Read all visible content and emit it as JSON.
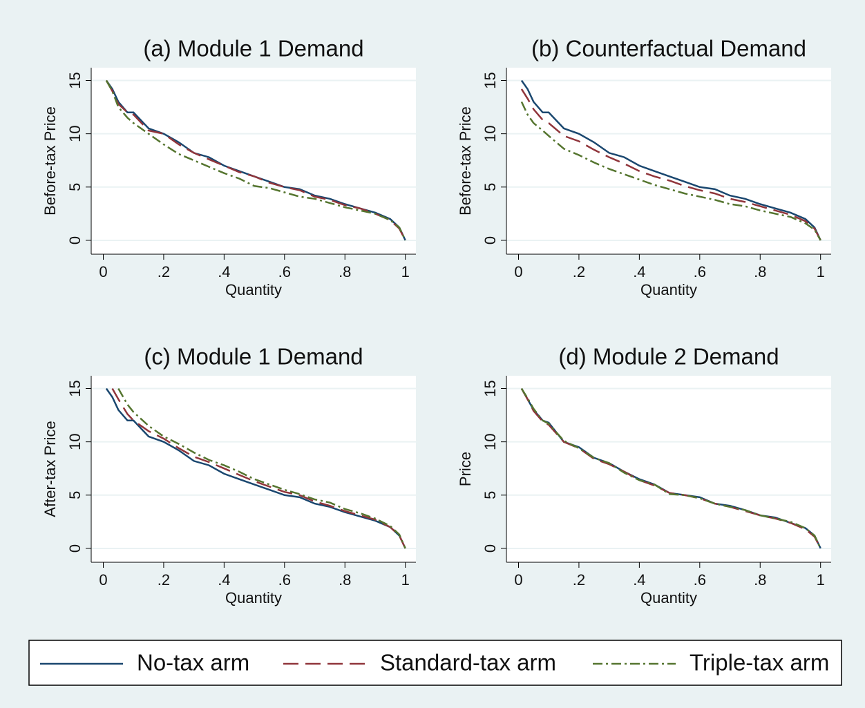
{
  "chart_data": [
    {
      "type": "line",
      "title": "(a) Module 1 Demand",
      "xlabel": "Quantity",
      "ylabel": "Before-tax Price",
      "x": [
        0.01,
        0.03,
        0.05,
        0.08,
        0.1,
        0.15,
        0.2,
        0.25,
        0.3,
        0.35,
        0.4,
        0.45,
        0.5,
        0.55,
        0.6,
        0.65,
        0.7,
        0.75,
        0.8,
        0.85,
        0.9,
        0.95,
        0.98,
        1
      ],
      "series": [
        {
          "name": "No-tax arm",
          "color": "#1a476f",
          "values": [
            15,
            14.2,
            13,
            12,
            12,
            10.5,
            10,
            9.2,
            8.2,
            7.8,
            7,
            6.5,
            6,
            5.5,
            5,
            4.8,
            4.2,
            3.9,
            3.4,
            3,
            2.6,
            2,
            1.2,
            0
          ]
        },
        {
          "name": "Standard-tax arm",
          "color": "#90353b",
          "values": [
            15,
            14,
            12.8,
            12,
            11.8,
            10.3,
            10,
            9,
            8.2,
            7.6,
            7,
            6.4,
            6,
            5.4,
            5,
            4.7,
            4.1,
            3.8,
            3.3,
            3,
            2.5,
            1.9,
            1.1,
            0
          ]
        },
        {
          "name": "Triple-tax arm",
          "color": "#55752f",
          "values": [
            15,
            14,
            12.5,
            11.5,
            11,
            10,
            9,
            8.1,
            7.5,
            6.9,
            6.3,
            5.8,
            5.1,
            4.9,
            4.5,
            4.1,
            3.9,
            3.5,
            3.1,
            2.8,
            2.5,
            1.9,
            1.2,
            0
          ]
        }
      ],
      "xlim": [
        -0.04,
        1.035
      ],
      "ylim": [
        -1.3,
        16.2
      ],
      "xticks": [
        0,
        {
          "value": 0.2,
          "label": ".2"
        },
        {
          "value": 0.4,
          "label": ".4"
        },
        {
          "value": 0.6,
          "label": ".6"
        },
        {
          "value": 0.8,
          "label": ".8"
        },
        1
      ],
      "yticks": [
        0,
        5,
        10,
        15
      ],
      "grid": true
    },
    {
      "type": "line",
      "title": "(b) Counterfactual Demand",
      "xlabel": "Quantity",
      "ylabel": "Before-tax Price",
      "x": [
        0.01,
        0.03,
        0.05,
        0.08,
        0.1,
        0.15,
        0.2,
        0.25,
        0.3,
        0.35,
        0.4,
        0.45,
        0.5,
        0.55,
        0.6,
        0.65,
        0.7,
        0.75,
        0.8,
        0.85,
        0.9,
        0.95,
        0.98,
        1
      ],
      "series": [
        {
          "name": "No-tax arm",
          "color": "#1a476f",
          "values": [
            15,
            14.2,
            13,
            12,
            12,
            10.5,
            10,
            9.2,
            8.2,
            7.8,
            7,
            6.5,
            6,
            5.5,
            5,
            4.8,
            4.2,
            3.9,
            3.4,
            3,
            2.6,
            2,
            1.2,
            0
          ]
        },
        {
          "name": "Standard-tax arm",
          "color": "#90353b",
          "values": [
            14.2,
            13.3,
            12.3,
            11.3,
            11,
            9.8,
            9.3,
            8.5,
            7.8,
            7.2,
            6.5,
            6,
            5.6,
            5.1,
            4.7,
            4.4,
            3.9,
            3.6,
            3.2,
            2.8,
            2.4,
            1.8,
            1.1,
            0
          ]
        },
        {
          "name": "Triple-tax arm",
          "color": "#55752f",
          "values": [
            13,
            11.8,
            11,
            10.3,
            9.8,
            8.6,
            8,
            7.3,
            6.7,
            6.2,
            5.7,
            5.2,
            4.8,
            4.4,
            4.1,
            3.8,
            3.4,
            3.2,
            2.8,
            2.5,
            2.2,
            1.6,
            1,
            0
          ]
        }
      ],
      "xlim": [
        -0.04,
        1.035
      ],
      "ylim": [
        -1.3,
        16.2
      ],
      "xticks": [
        0,
        {
          "value": 0.2,
          "label": ".2"
        },
        {
          "value": 0.4,
          "label": ".4"
        },
        {
          "value": 0.6,
          "label": ".6"
        },
        {
          "value": 0.8,
          "label": ".8"
        },
        1
      ],
      "yticks": [
        0,
        5,
        10,
        15
      ],
      "grid": true
    },
    {
      "type": "line",
      "title": "(c) Module 1 Demand",
      "xlabel": "Quantity",
      "ylabel": "After-tax Price",
      "x": [
        0.01,
        0.03,
        0.05,
        0.08,
        0.1,
        0.15,
        0.2,
        0.25,
        0.3,
        0.35,
        0.4,
        0.45,
        0.5,
        0.55,
        0.6,
        0.65,
        0.7,
        0.75,
        0.8,
        0.85,
        0.9,
        0.95,
        0.98,
        1
      ],
      "series": [
        {
          "name": "No-tax arm",
          "color": "#1a476f",
          "values": [
            15,
            14.2,
            13,
            12,
            12,
            10.5,
            10,
            9.2,
            8.2,
            7.8,
            7,
            6.5,
            6,
            5.5,
            5,
            4.8,
            4.2,
            3.9,
            3.4,
            3,
            2.6,
            2,
            1.2,
            0
          ]
        },
        {
          "name": "Standard-tax arm",
          "color": "#90353b",
          "values": [
            null,
            15,
            14,
            12.6,
            12,
            11,
            10.3,
            9.4,
            8.6,
            8.1,
            7.5,
            6.9,
            6.3,
            5.8,
            5.3,
            5,
            4.4,
            4,
            3.5,
            3.1,
            2.7,
            2,
            1.2,
            0
          ]
        },
        {
          "name": "Triple-tax arm",
          "color": "#55752f",
          "values": [
            null,
            null,
            15,
            13.5,
            12.8,
            11.5,
            10.5,
            9.8,
            9,
            8.3,
            7.8,
            7.2,
            6.5,
            6,
            5.5,
            5.1,
            4.6,
            4.3,
            3.7,
            3.3,
            2.8,
            2.1,
            1.3,
            0
          ]
        }
      ],
      "xlim": [
        -0.04,
        1.035
      ],
      "ylim": [
        -1.3,
        16.2
      ],
      "xticks": [
        0,
        {
          "value": 0.2,
          "label": ".2"
        },
        {
          "value": 0.4,
          "label": ".4"
        },
        {
          "value": 0.6,
          "label": ".6"
        },
        {
          "value": 0.8,
          "label": ".8"
        },
        1
      ],
      "yticks": [
        0,
        5,
        10,
        15
      ],
      "grid": true
    },
    {
      "type": "line",
      "title": "(d) Module 2 Demand",
      "xlabel": "Quantity",
      "ylabel": "Price",
      "x": [
        0.01,
        0.03,
        0.05,
        0.08,
        0.1,
        0.15,
        0.2,
        0.25,
        0.3,
        0.35,
        0.4,
        0.45,
        0.5,
        0.55,
        0.6,
        0.65,
        0.7,
        0.75,
        0.8,
        0.85,
        0.9,
        0.95,
        0.98,
        1
      ],
      "series": [
        {
          "name": "No-tax arm",
          "color": "#1a476f",
          "values": [
            15,
            14,
            13,
            12,
            11.8,
            10,
            9.5,
            8.5,
            8,
            7.2,
            6.5,
            6,
            5.2,
            5,
            4.8,
            4.2,
            4,
            3.6,
            3.1,
            2.9,
            2.4,
            1.9,
            1.2,
            0
          ]
        },
        {
          "name": "Standard-tax arm",
          "color": "#90353b",
          "values": [
            15,
            14,
            12.9,
            11.9,
            11.6,
            10,
            9.4,
            8.4,
            7.9,
            7.2,
            6.4,
            5.9,
            5.2,
            5,
            4.7,
            4.2,
            3.9,
            3.5,
            3.1,
            2.8,
            2.4,
            1.8,
            1.1,
            0
          ]
        },
        {
          "name": "Triple-tax arm",
          "color": "#55752f",
          "values": [
            15,
            14.1,
            13.1,
            12,
            11.7,
            10.1,
            9.4,
            8.5,
            8,
            7.1,
            6.4,
            6,
            5.1,
            5,
            4.7,
            4.2,
            3.9,
            3.6,
            3.1,
            2.8,
            2.5,
            1.9,
            1.2,
            0
          ]
        }
      ],
      "xlim": [
        -0.04,
        1.035
      ],
      "ylim": [
        -1.3,
        16.2
      ],
      "xticks": [
        0,
        {
          "value": 0.2,
          "label": ".2"
        },
        {
          "value": 0.4,
          "label": ".4"
        },
        {
          "value": 0.6,
          "label": ".6"
        },
        {
          "value": 0.8,
          "label": ".8"
        },
        1
      ],
      "yticks": [
        0,
        5,
        10,
        15
      ],
      "grid": true,
      "legend": "bottom"
    }
  ]
}
